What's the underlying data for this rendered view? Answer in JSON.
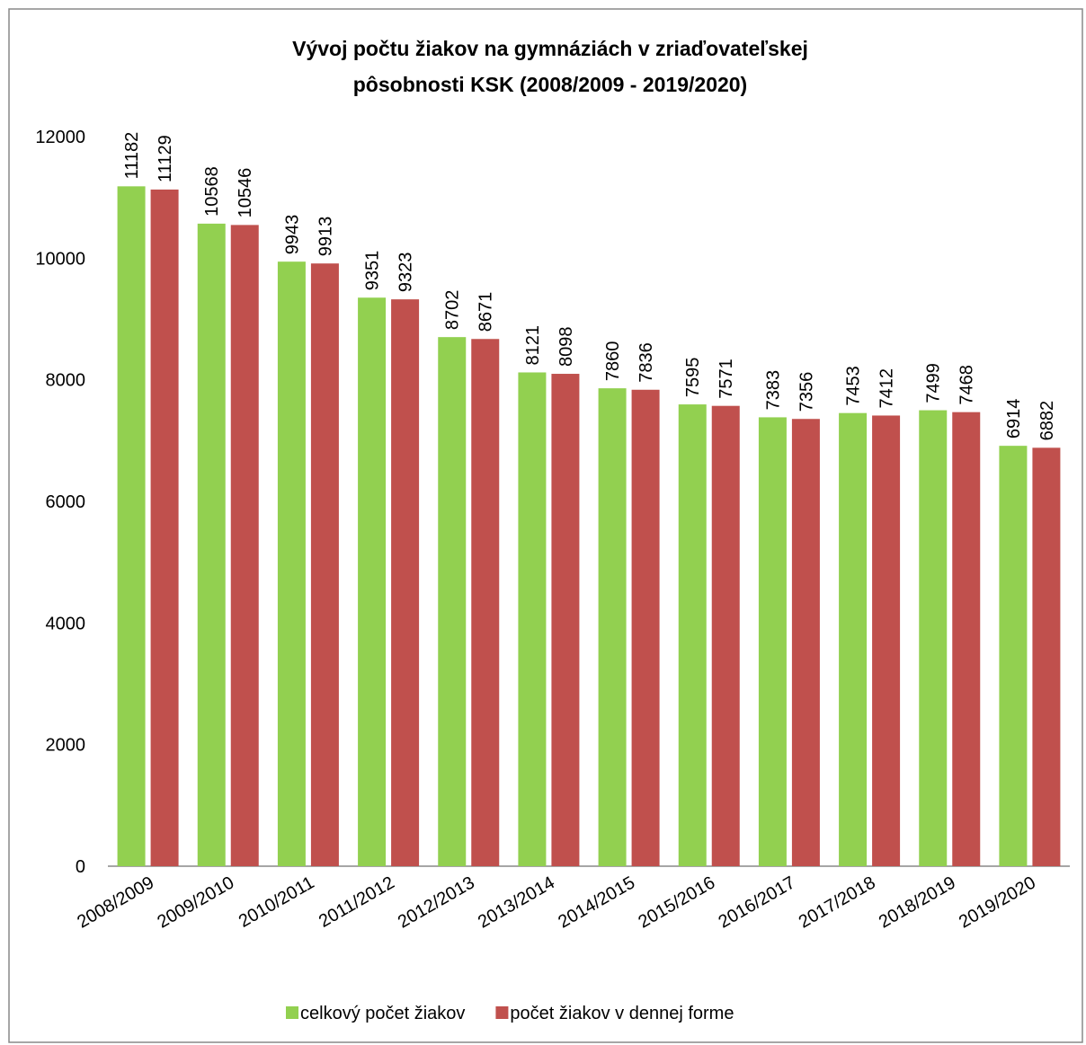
{
  "chart_data": {
    "type": "bar",
    "title": [
      "Vývoj počtu žiakov na gymnáziách v zriaďovateľskej",
      "pôsobnosti KSK (2008/2009 - 2019/2020)"
    ],
    "categories": [
      "2008/2009",
      "2009/2010",
      "2010/2011",
      "2011/2012",
      "2012/2013",
      "2013/2014",
      "2014/2015",
      "2015/2016",
      "2016/2017",
      "2017/2018",
      "2018/2019",
      "2019/2020"
    ],
    "series": [
      {
        "name": "celkový počet žiakov",
        "color": "#92d050",
        "values": [
          11182,
          10568,
          9943,
          9351,
          8702,
          8121,
          7860,
          7595,
          7383,
          7453,
          7499,
          6914
        ]
      },
      {
        "name": "počet žiakov v dennej forme",
        "color": "#c0504d",
        "values": [
          11129,
          10546,
          9913,
          9323,
          8671,
          8098,
          7836,
          7571,
          7356,
          7412,
          7468,
          6882
        ]
      }
    ],
    "ylim": [
      0,
      12000
    ],
    "yticks": [
      0,
      2000,
      4000,
      6000,
      8000,
      10000,
      12000
    ],
    "legend": "bottom"
  }
}
